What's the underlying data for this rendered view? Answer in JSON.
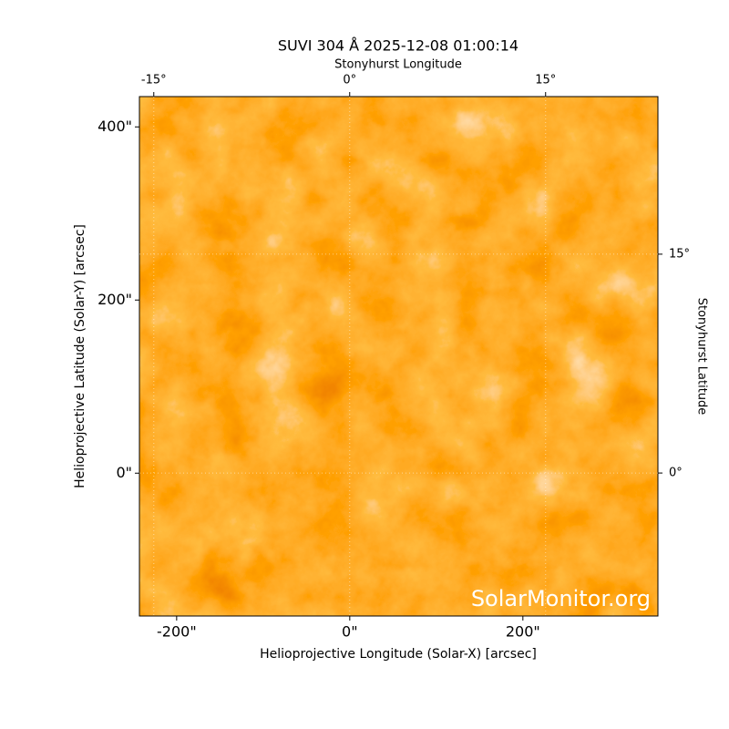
{
  "chart_data": {
    "type": "image",
    "title": "SUVI 304 Å 2025-12-08 01:00:14",
    "xlabel": "Helioprojective Longitude (Solar-X) [arcsec]",
    "ylabel": "Helioprojective Latitude (Solar-Y) [arcsec]",
    "x2label": "Stonyhurst Longitude",
    "y2label": "Stonyhurst Latitude",
    "watermark": "SolarMonitor.org",
    "xlim": [
      -243,
      356
    ],
    "ylim": [
      -165,
      435
    ],
    "xticks": [
      {
        "value": -200,
        "label": "-200\""
      },
      {
        "value": 0,
        "label": "0\""
      },
      {
        "value": 200,
        "label": "200\""
      }
    ],
    "yticks": [
      {
        "value": 0,
        "label": "0\""
      },
      {
        "value": 200,
        "label": "200\""
      },
      {
        "value": 400,
        "label": "400\""
      }
    ],
    "x2lim": [
      -16.1,
      23.6
    ],
    "y2lim": [
      -9.8,
      25.8
    ],
    "x2ticks": [
      {
        "value": -15,
        "label": "-15°"
      },
      {
        "value": 0,
        "label": "0°"
      },
      {
        "value": 15,
        "label": "15°"
      }
    ],
    "y2ticks": [
      {
        "value": 0,
        "label": "0°"
      },
      {
        "value": 15,
        "label": "15°"
      }
    ],
    "grid": true
  }
}
